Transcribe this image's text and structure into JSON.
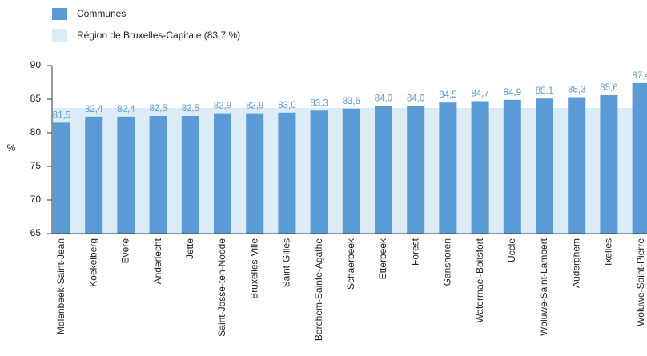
{
  "chart_data": {
    "type": "bar",
    "categories": [
      "Molenbeek-Saint-Jean",
      "Koekelberg",
      "Evere",
      "Anderlecht",
      "Jette",
      "Saint-Josse-ten-Noode",
      "Bruxelles-Ville",
      "Saint-Gilles",
      "Berchem-Sainte-Agathe",
      "Schaerbeek",
      "Etterbeek",
      "Forest",
      "Ganshoren",
      "Watermael-Boitsfort",
      "Uccle",
      "Woluwe-Saint-Lambert",
      "Auderghem",
      "Ixelles",
      "Woluwe-Saint-Pierre"
    ],
    "series": [
      {
        "name": "Communes",
        "color": "#5b9bd5",
        "values": [
          81.5,
          82.4,
          82.4,
          82.5,
          82.5,
          82.9,
          82.9,
          83.0,
          83.3,
          83.6,
          84.0,
          84.0,
          84.5,
          84.7,
          84.9,
          85.1,
          85.3,
          85.6,
          87.4
        ],
        "value_labels": [
          "81,5",
          "82,4",
          "82,4",
          "82,5",
          "82,5",
          "82,9",
          "82,9",
          "83,0",
          "83,3",
          "83,6",
          "84,0",
          "84,0",
          "84,5",
          "84,7",
          "84,9",
          "85,1",
          "85,3",
          "85,6",
          "87,4"
        ]
      }
    ],
    "reference": {
      "name": "Région de Bruxelles-Capitale (83,7 %)",
      "value": 83.7,
      "color": "#dcecf7"
    },
    "ylabel": "%",
    "ylim": [
      65,
      90
    ],
    "yticks": [
      65,
      70,
      75,
      80,
      85,
      90
    ],
    "grid": false
  }
}
